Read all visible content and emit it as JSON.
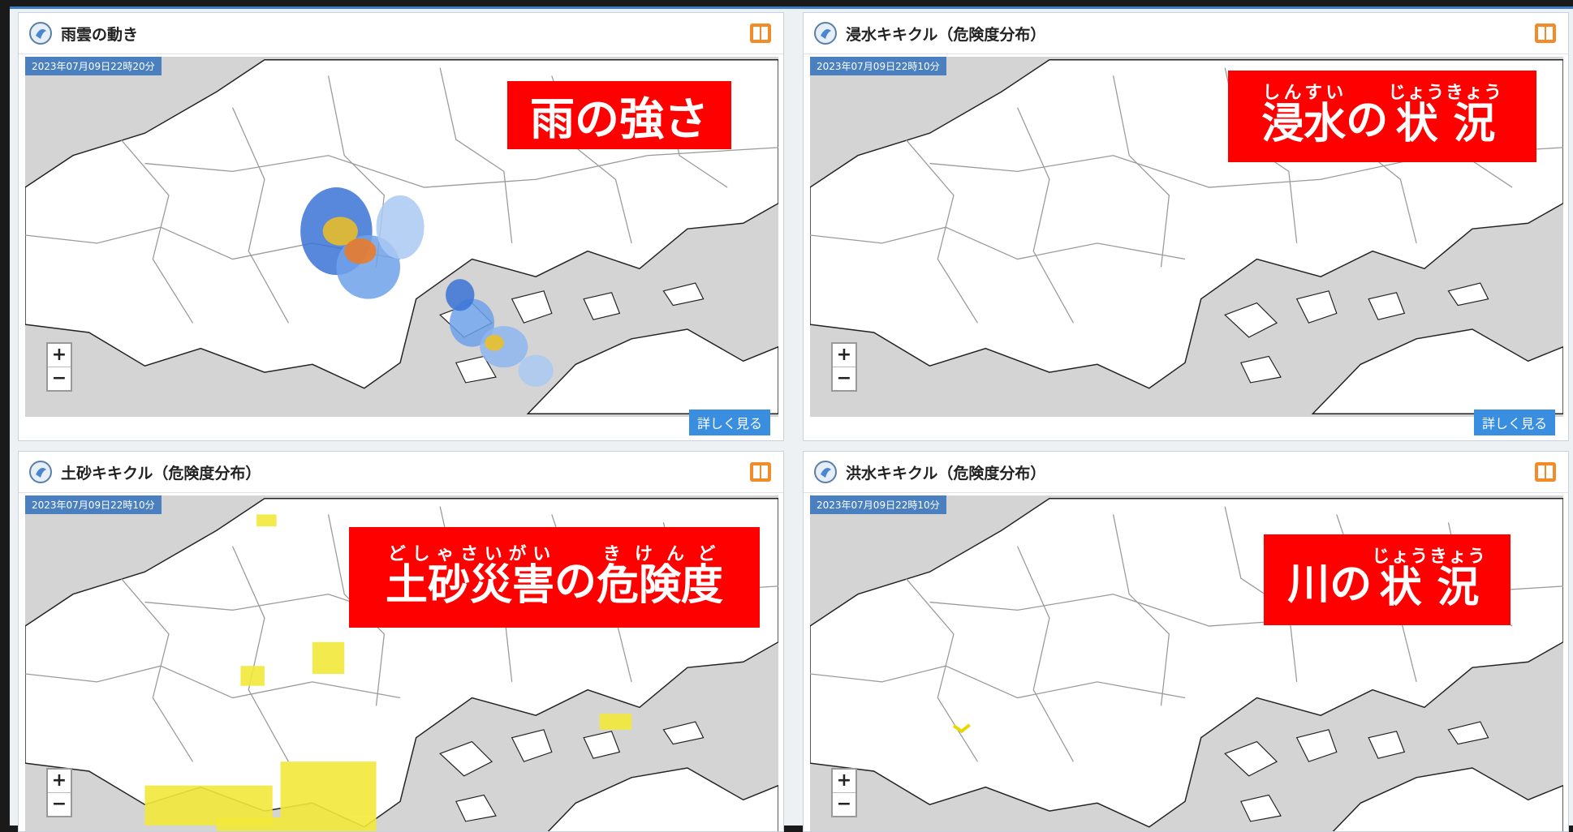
{
  "panels": [
    {
      "title": "雨雲の動き",
      "timestamp": "2023年07月09日22時20分",
      "label": [
        {
          "text": "雨の強さ"
        }
      ],
      "more_button": "詳しく見る"
    },
    {
      "title": "浸水キキクル（危険度分布）",
      "timestamp": "2023年07月09日22時10分",
      "label": [
        {
          "text": "浸水",
          "ruby": "しんすい"
        },
        {
          "text": "の"
        },
        {
          "text": "状況",
          "ruby": "じょうきょう"
        }
      ],
      "more_button": "詳しく見る"
    },
    {
      "title": "土砂キキクル（危険度分布）",
      "timestamp": "2023年07月09日22時10分",
      "label": [
        {
          "text": "土砂災害",
          "ruby": "どしゃさいがい"
        },
        {
          "text": "の"
        },
        {
          "text": "危険度",
          "ruby": "きけんど"
        }
      ]
    },
    {
      "title": "洪水キキクル（危険度分布）",
      "timestamp": "2023年07月09日22時10分",
      "label": [
        {
          "text": "川"
        },
        {
          "text": "の"
        },
        {
          "text": "状況",
          "ruby": "じょうきょう"
        }
      ]
    }
  ],
  "zoom": {
    "in": "+",
    "out": "−"
  }
}
